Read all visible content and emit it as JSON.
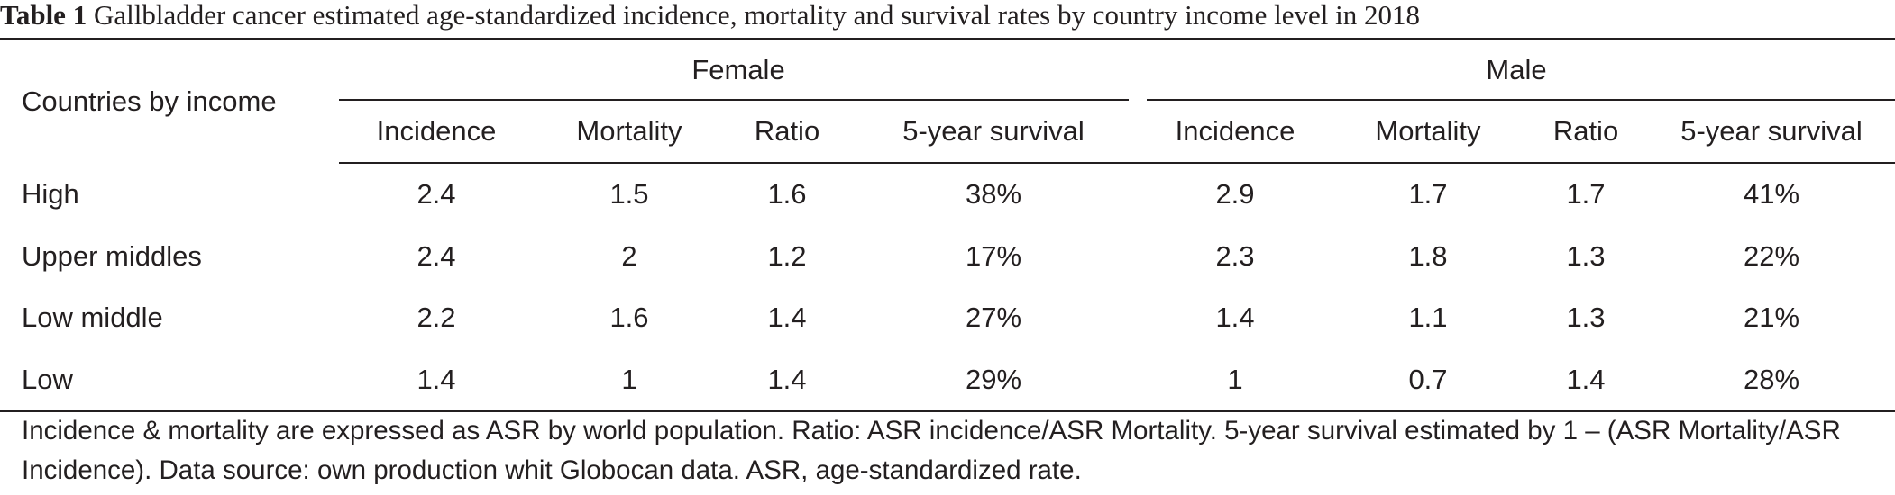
{
  "caption": {
    "label": "Table 1",
    "text": "Gallbladder cancer estimated age-standardized incidence, mortality and survival rates by country income level in 2018"
  },
  "table": {
    "row_header": "Countries by income",
    "groups": [
      "Female",
      "Male"
    ],
    "columns": [
      "Incidence",
      "Mortality",
      "Ratio",
      "5-year survival",
      "Incidence",
      "Mortality",
      "Ratio",
      "5-year survival"
    ],
    "rows": [
      {
        "label": "High",
        "cells": [
          "2.4",
          "1.5",
          "1.6",
          "38%",
          "2.9",
          "1.7",
          "1.7",
          "41%"
        ]
      },
      {
        "label": "Upper middles",
        "cells": [
          "2.4",
          "2",
          "1.2",
          "17%",
          "2.3",
          "1.8",
          "1.3",
          "22%"
        ]
      },
      {
        "label": "Low middle",
        "cells": [
          "2.2",
          "1.6",
          "1.4",
          "27%",
          "1.4",
          "1.1",
          "1.3",
          "21%"
        ]
      },
      {
        "label": "Low",
        "cells": [
          "1.4",
          "1",
          "1.4",
          "29%",
          "1",
          "0.7",
          "1.4",
          "28%"
        ]
      }
    ]
  },
  "footnote": "Incidence & mortality are expressed as ASR by world population. Ratio: ASR incidence/ASR Mortality. 5-year survival estimated by 1 – (ASR Mortality/ASR Incidence). Data source: own production whit Globocan data. ASR, age-standardized rate."
}
